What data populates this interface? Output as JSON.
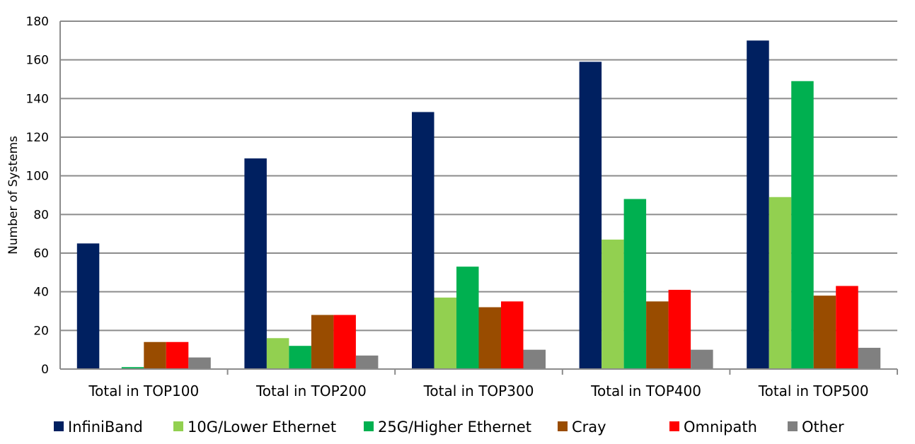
{
  "chart_data": {
    "type": "bar",
    "title": "",
    "xlabel": "",
    "ylabel": "Number of Systems",
    "ylim": [
      0,
      180
    ],
    "yticks": [
      0,
      20,
      40,
      60,
      80,
      100,
      120,
      140,
      160,
      180
    ],
    "grid": true,
    "legend_position": "bottom",
    "categories": [
      "Total in TOP100",
      "Total in TOP200",
      "Total in TOP300",
      "Total in TOP400",
      "Total in TOP500"
    ],
    "series": [
      {
        "name": "InfiniBand",
        "color": "#002060",
        "values": [
          65,
          109,
          133,
          159,
          170
        ]
      },
      {
        "name": "10G/Lower Ethernet",
        "color": "#92D050",
        "values": [
          0,
          16,
          37,
          67,
          89
        ]
      },
      {
        "name": "25G/Higher Ethernet",
        "color": "#00B050",
        "values": [
          1,
          12,
          53,
          88,
          149
        ]
      },
      {
        "name": "Cray",
        "color": "#994C00",
        "values": [
          14,
          28,
          32,
          35,
          38
        ]
      },
      {
        "name": "Omnipath",
        "color": "#FF0000",
        "values": [
          14,
          28,
          35,
          41,
          43
        ]
      },
      {
        "name": "Other",
        "color": "#808080",
        "values": [
          6,
          7,
          10,
          10,
          11
        ]
      }
    ]
  }
}
